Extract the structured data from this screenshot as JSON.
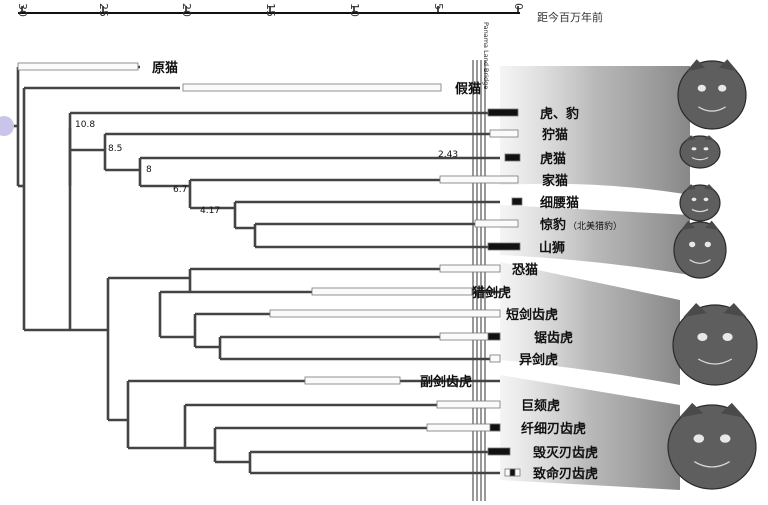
{
  "time_axis": {
    "title": "距今百万年前",
    "ticks": [
      "30",
      "25",
      "20",
      "15",
      "10",
      "5",
      "0"
    ]
  },
  "bridge_label": "Panama Land Bridge",
  "node_ages": [
    "10.8",
    "8.5",
    "8",
    "6.7",
    "4.17",
    "2.43"
  ],
  "taxa": [
    {
      "name": "原猫"
    },
    {
      "name": "假猫"
    },
    {
      "name": "虎、豹"
    },
    {
      "name": "狞猫"
    },
    {
      "name": "虎猫"
    },
    {
      "name": "家猫"
    },
    {
      "name": "细腰猫"
    },
    {
      "name": "惊豹",
      "note": "（北美猎豹）"
    },
    {
      "name": "山狮"
    },
    {
      "name": "恐猫"
    },
    {
      "name": "猎剑虎"
    },
    {
      "name": "短剑齿虎"
    },
    {
      "name": "锯齿虎"
    },
    {
      "name": "异剑虎"
    },
    {
      "name": "副剑齿虎"
    },
    {
      "name": "巨颏虎"
    },
    {
      "name": "纤细刃齿虎"
    },
    {
      "name": "毁灭刃齿虎"
    },
    {
      "name": "致命刃齿虎"
    }
  ],
  "head_icons": [
    "leopard-head-icon",
    "caracal-head-icon",
    "domestic-cat-head-icon",
    "jaguarundi-head-icon",
    "puma-head-icon",
    "scimitar-cat-head-icon",
    "smilodon-head-icon"
  ]
}
